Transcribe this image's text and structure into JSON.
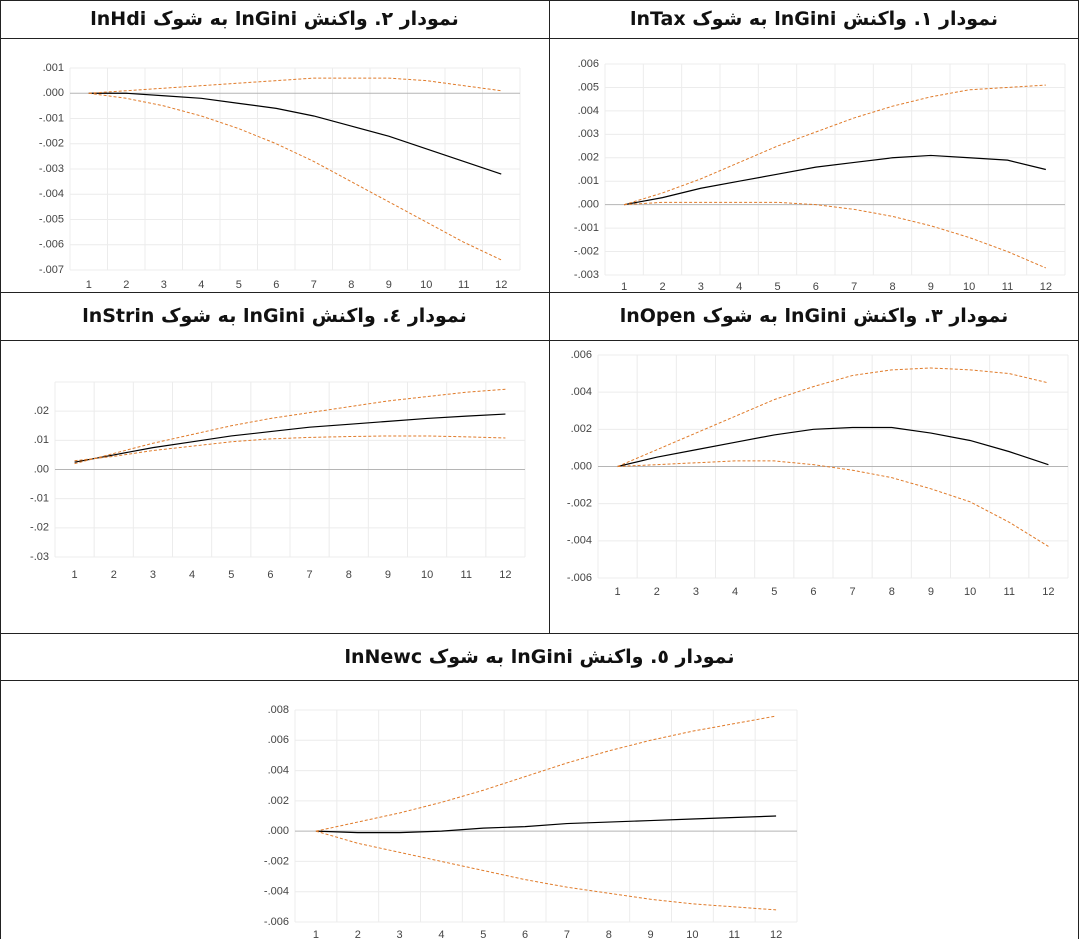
{
  "chart_data": [
    {
      "type": "line",
      "title": "نمودار ۱. واکنش lnGini به شوک lnTax",
      "categories": [
        "1",
        "2",
        "3",
        "4",
        "5",
        "6",
        "7",
        "8",
        "9",
        "10",
        "11",
        "12"
      ],
      "ylim": [
        -0.003,
        0.006
      ],
      "yticks": [
        {
          "value": -0.003,
          "label": "-.003"
        },
        {
          "value": -0.002,
          "label": "-.002"
        },
        {
          "value": -0.001,
          "label": "-.001"
        },
        {
          "value": 0,
          "label": ".000"
        },
        {
          "value": 0.001,
          "label": ".001"
        },
        {
          "value": 0.002,
          "label": ".002"
        },
        {
          "value": 0.003,
          "label": ".003"
        },
        {
          "value": 0.004,
          "label": ".004"
        },
        {
          "value": 0.005,
          "label": ".005"
        },
        {
          "value": 0.006,
          "label": ".006"
        }
      ],
      "grid": true,
      "series": [
        {
          "color": "#000000",
          "values": [
            0,
            0.0003,
            0.0007,
            0.001,
            0.0013,
            0.0016,
            0.0018,
            0.002,
            0.0021,
            0.002,
            0.0019,
            0.0015
          ]
        },
        {
          "color": "#e07b2a",
          "values": [
            0,
            0.0005,
            0.0011,
            0.0018,
            0.0025,
            0.0031,
            0.0037,
            0.0042,
            0.0046,
            0.0049,
            0.005,
            0.0051
          ]
        },
        {
          "color": "#e07b2a",
          "values": [
            0,
            0.0001,
            0.0001,
            0.0001,
            0.0001,
            0,
            -0.0002,
            -0.0005,
            -0.0009,
            -0.0014,
            -0.002,
            -0.0027
          ]
        }
      ]
    },
    {
      "type": "line",
      "title": "نمودار ۲. واکنش lnGini به شوک lnHdi",
      "categories": [
        "1",
        "2",
        "3",
        "4",
        "5",
        "6",
        "7",
        "8",
        "9",
        "10",
        "11",
        "12"
      ],
      "ylim": [
        -0.007,
        0.001
      ],
      "yticks": [
        {
          "value": -0.007,
          "label": "-.007"
        },
        {
          "value": -0.006,
          "label": "-.006"
        },
        {
          "value": -0.005,
          "label": "-.005"
        },
        {
          "value": -0.004,
          "label": "-.004"
        },
        {
          "value": -0.003,
          "label": "-.003"
        },
        {
          "value": -0.002,
          "label": "-.002"
        },
        {
          "value": -0.001,
          "label": "-.001"
        },
        {
          "value": 0,
          "label": ".000"
        },
        {
          "value": 0.001,
          "label": ".001"
        }
      ],
      "grid": true,
      "series": [
        {
          "color": "#000000",
          "values": [
            0,
            0,
            -0.0001,
            -0.0002,
            -0.0004,
            -0.0006,
            -0.0009,
            -0.0013,
            -0.0017,
            -0.0022,
            -0.0027,
            -0.0032
          ]
        },
        {
          "color": "#e07b2a",
          "values": [
            0,
            0.0001,
            0.0002,
            0.0003,
            0.0004,
            0.0005,
            0.0006,
            0.0006,
            0.0006,
            0.0005,
            0.0003,
            0.0001
          ]
        },
        {
          "color": "#e07b2a",
          "values": [
            0,
            -0.0002,
            -0.0005,
            -0.0009,
            -0.0014,
            -0.002,
            -0.0027,
            -0.0035,
            -0.0043,
            -0.0051,
            -0.0059,
            -0.0066
          ]
        }
      ]
    },
    {
      "type": "line",
      "title": "نمودار ۳. واکنش lnGini به شوک lnOpen",
      "categories": [
        "1",
        "2",
        "3",
        "4",
        "5",
        "6",
        "7",
        "8",
        "9",
        "10",
        "11",
        "12"
      ],
      "ylim": [
        -0.006,
        0.006
      ],
      "yticks": [
        {
          "value": -0.006,
          "label": "-.006"
        },
        {
          "value": -0.004,
          "label": "-.004"
        },
        {
          "value": -0.002,
          "label": "-.002"
        },
        {
          "value": 0,
          "label": ".000"
        },
        {
          "value": 0.002,
          "label": ".002"
        },
        {
          "value": 0.004,
          "label": ".004"
        },
        {
          "value": 0.006,
          "label": ".006"
        }
      ],
      "grid": true,
      "series": [
        {
          "color": "#000000",
          "values": [
            0,
            0.0005,
            0.0009,
            0.0013,
            0.0017,
            0.002,
            0.0021,
            0.0021,
            0.0018,
            0.0014,
            0.0008,
            0.0001
          ]
        },
        {
          "color": "#e07b2a",
          "values": [
            0,
            0.0009,
            0.0018,
            0.0027,
            0.0036,
            0.0043,
            0.0049,
            0.0052,
            0.0053,
            0.0052,
            0.005,
            0.0045
          ]
        },
        {
          "color": "#e07b2a",
          "values": [
            0,
            0.0001,
            0.0002,
            0.0003,
            0.0003,
            0.0001,
            -0.0002,
            -0.0006,
            -0.0012,
            -0.0019,
            -0.003,
            -0.0043
          ]
        }
      ]
    },
    {
      "type": "line",
      "title": "نمودار ٤. واکنش lnGini به شوک lnStrin",
      "categories": [
        "1",
        "2",
        "3",
        "4",
        "5",
        "6",
        "7",
        "8",
        "9",
        "10",
        "11",
        "12"
      ],
      "ylim": [
        -0.03,
        0.03
      ],
      "yticks": [
        {
          "value": -0.03,
          "label": "-.03"
        },
        {
          "value": -0.02,
          "label": "-.02"
        },
        {
          "value": -0.01,
          "label": "-.01"
        },
        {
          "value": 0,
          "label": ".00"
        },
        {
          "value": 0.01,
          "label": ".01"
        },
        {
          "value": 0.02,
          "label": ".02"
        }
      ],
      "grid": true,
      "series": [
        {
          "color": "#000000",
          "values": [
            0.0025,
            0.005,
            0.0075,
            0.0095,
            0.0115,
            0.013,
            0.0145,
            0.0155,
            0.0165,
            0.0175,
            0.0183,
            0.019
          ]
        },
        {
          "color": "#e07b2a",
          "values": [
            0.002,
            0.0055,
            0.009,
            0.012,
            0.015,
            0.0175,
            0.0195,
            0.0215,
            0.0235,
            0.025,
            0.0265,
            0.0275
          ]
        },
        {
          "color": "#e07b2a",
          "values": [
            0.003,
            0.0045,
            0.0065,
            0.008,
            0.0095,
            0.0105,
            0.011,
            0.0113,
            0.0115,
            0.0115,
            0.0112,
            0.0108
          ]
        }
      ]
    },
    {
      "type": "line",
      "title": "نمودار ٥. واکنش lnGini به شوک lnNewc",
      "categories": [
        "1",
        "2",
        "3",
        "4",
        "5",
        "6",
        "7",
        "8",
        "9",
        "10",
        "11",
        "12"
      ],
      "ylim": [
        -0.006,
        0.008
      ],
      "yticks": [
        {
          "value": -0.006,
          "label": "-.006"
        },
        {
          "value": -0.004,
          "label": "-.004"
        },
        {
          "value": -0.002,
          "label": "-.002"
        },
        {
          "value": 0,
          "label": ".000"
        },
        {
          "value": 0.002,
          "label": ".002"
        },
        {
          "value": 0.004,
          "label": ".004"
        },
        {
          "value": 0.006,
          "label": ".006"
        },
        {
          "value": 0.008,
          "label": ".008"
        }
      ],
      "grid": true,
      "series": [
        {
          "color": "#000000",
          "values": [
            0,
            -0.0001,
            -0.0001,
            0,
            0.0002,
            0.0003,
            0.0005,
            0.0006,
            0.0007,
            0.0008,
            0.0009,
            0.001
          ]
        },
        {
          "color": "#e07b2a",
          "values": [
            0,
            0.0006,
            0.0012,
            0.0019,
            0.0027,
            0.0036,
            0.0045,
            0.0053,
            0.006,
            0.0066,
            0.0071,
            0.0076
          ]
        },
        {
          "color": "#e07b2a",
          "values": [
            0,
            -0.0008,
            -0.0014,
            -0.002,
            -0.0026,
            -0.0032,
            -0.0037,
            -0.0041,
            -0.0045,
            -0.0048,
            -0.005,
            -0.0052
          ]
        }
      ]
    }
  ]
}
